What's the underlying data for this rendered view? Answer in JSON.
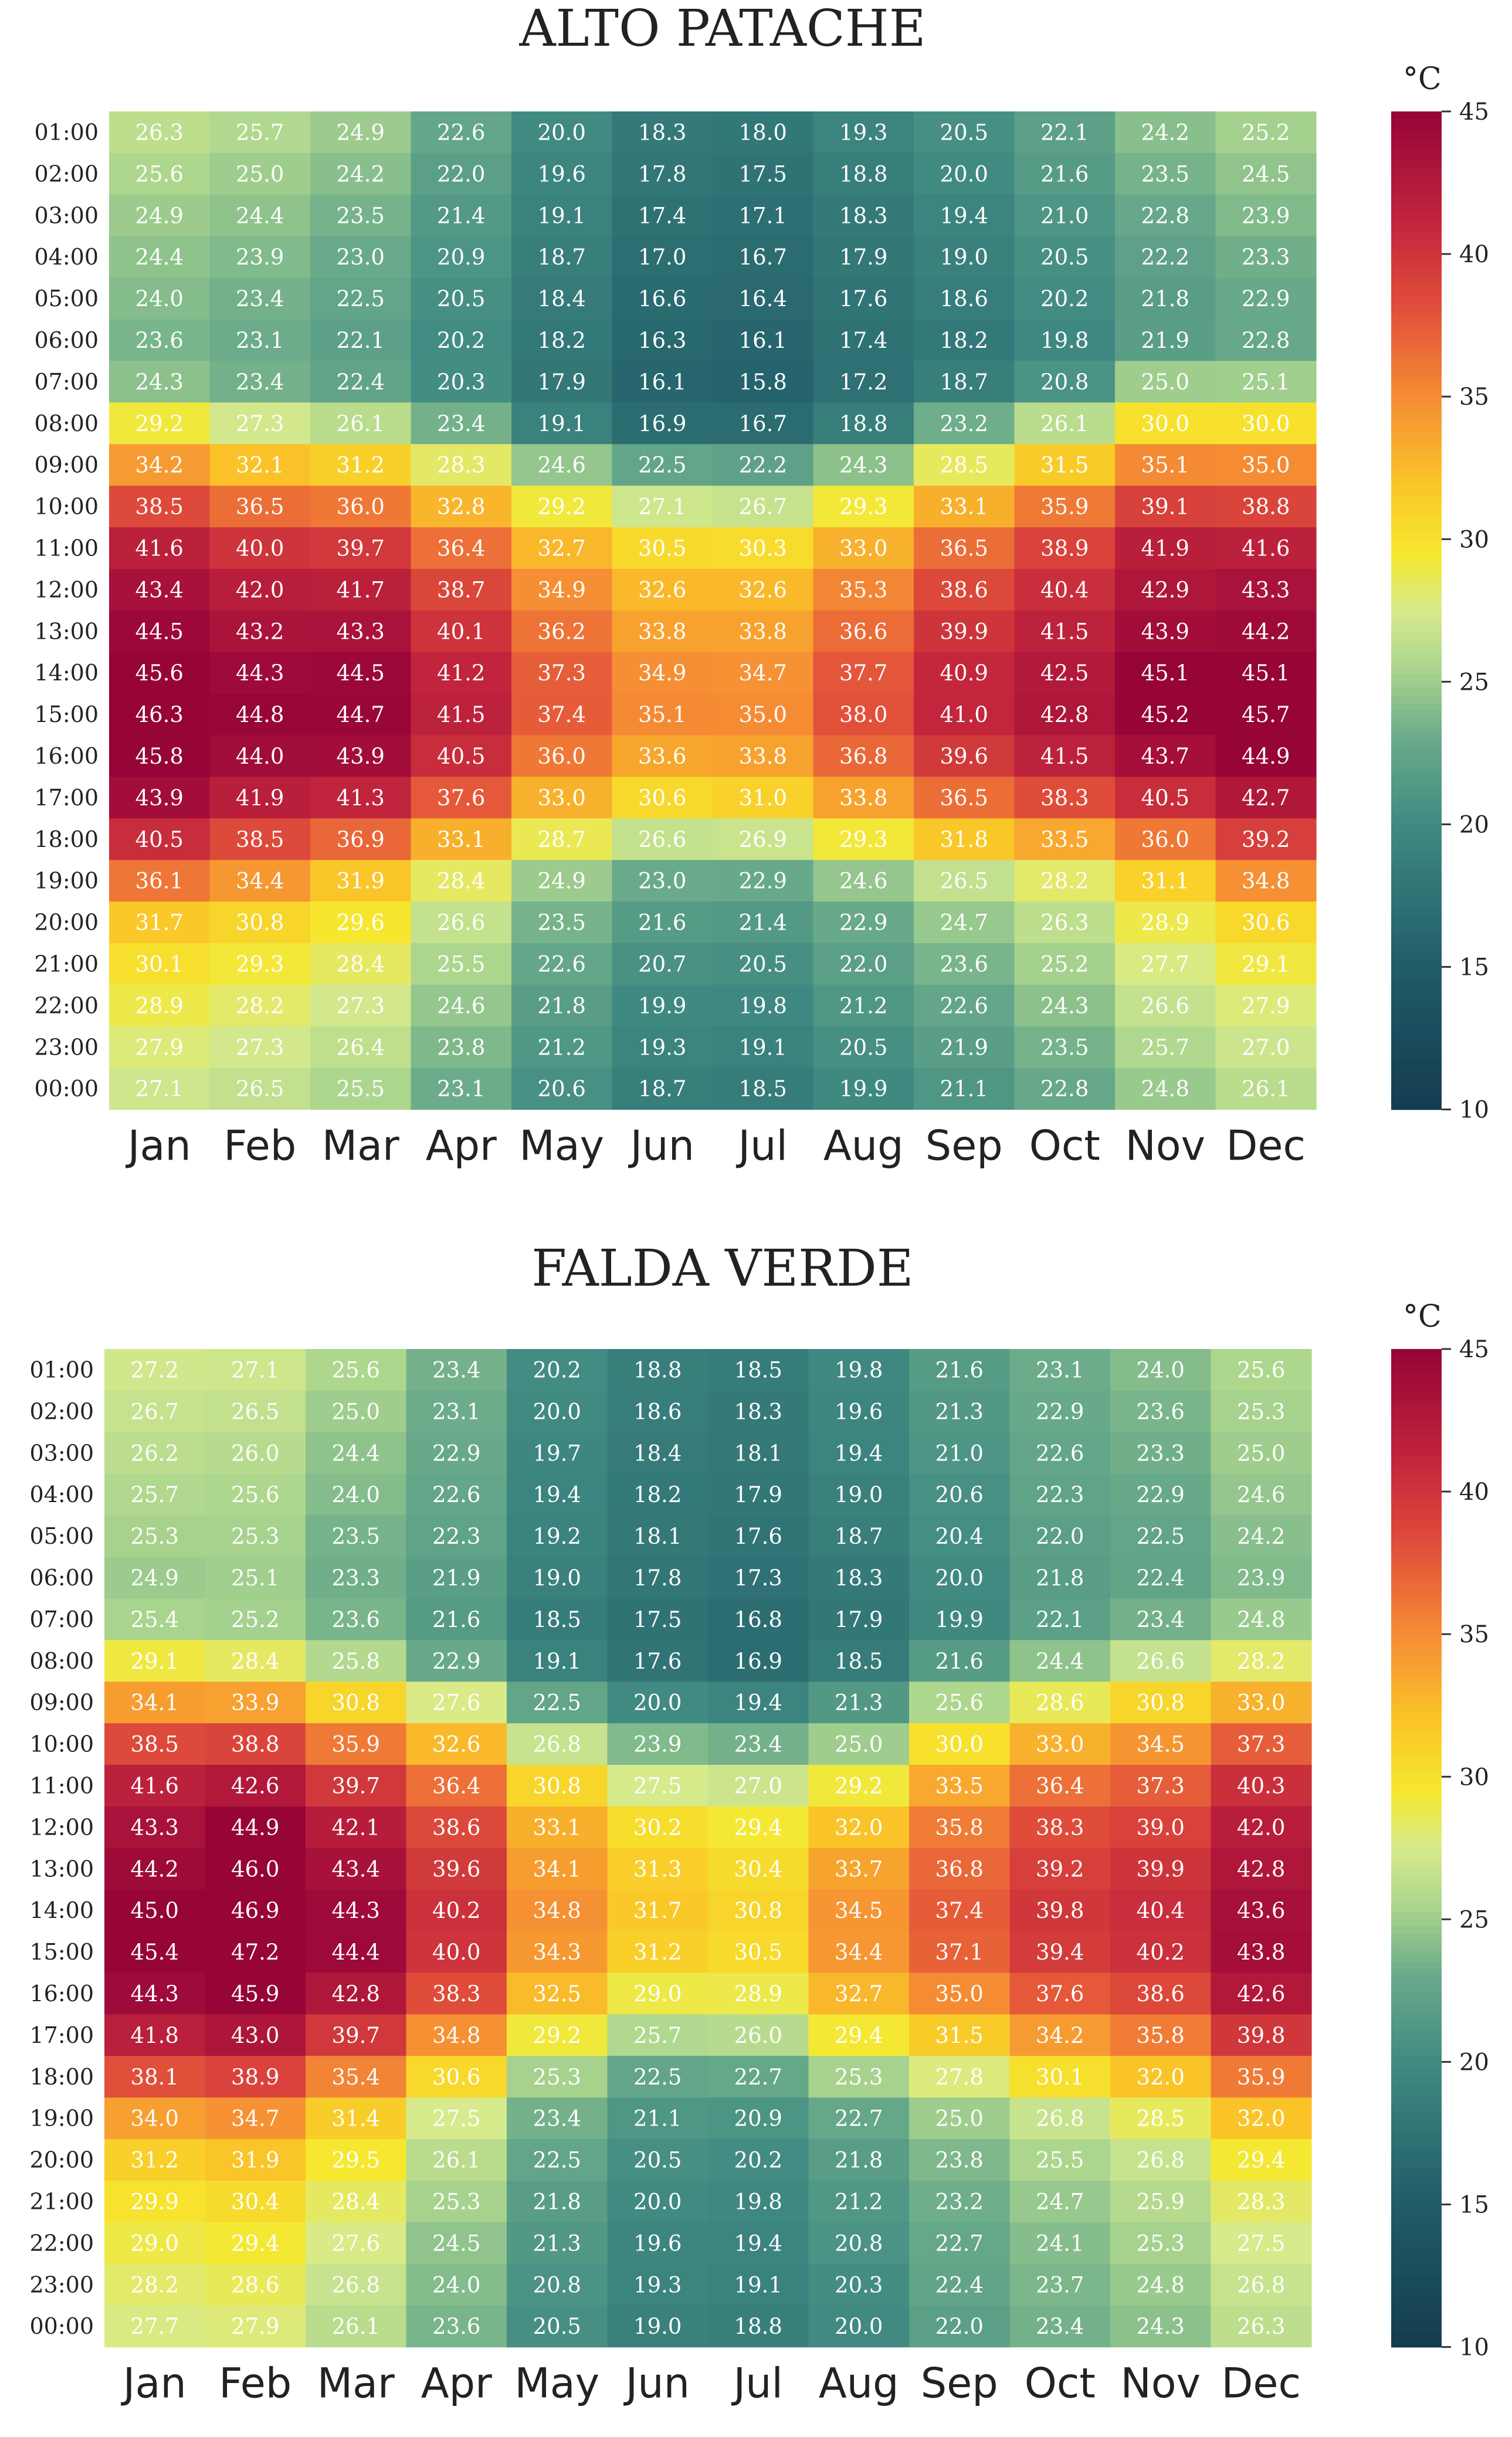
{
  "chart_data": [
    {
      "type": "heatmap",
      "title": "ALTO PATACHE",
      "x": [
        "Jan",
        "Feb",
        "Mar",
        "Apr",
        "May",
        "Jun",
        "Jul",
        "Aug",
        "Sep",
        "Oct",
        "Nov",
        "Dec"
      ],
      "y": [
        "01:00",
        "02:00",
        "03:00",
        "04:00",
        "05:00",
        "06:00",
        "07:00",
        "08:00",
        "09:00",
        "10:00",
        "11:00",
        "12:00",
        "13:00",
        "14:00",
        "15:00",
        "16:00",
        "17:00",
        "18:00",
        "19:00",
        "20:00",
        "21:00",
        "22:00",
        "23:00",
        "00:00"
      ],
      "values": [
        [
          26.3,
          25.7,
          24.9,
          22.6,
          20.0,
          18.3,
          18.0,
          19.3,
          20.5,
          22.1,
          24.2,
          25.2
        ],
        [
          25.6,
          25.0,
          24.2,
          22.0,
          19.6,
          17.8,
          17.5,
          18.8,
          20.0,
          21.6,
          23.5,
          24.5
        ],
        [
          24.9,
          24.4,
          23.5,
          21.4,
          19.1,
          17.4,
          17.1,
          18.3,
          19.4,
          21.0,
          22.8,
          23.9
        ],
        [
          24.4,
          23.9,
          23.0,
          20.9,
          18.7,
          17.0,
          16.7,
          17.9,
          19.0,
          20.5,
          22.2,
          23.3
        ],
        [
          24.0,
          23.4,
          22.5,
          20.5,
          18.4,
          16.6,
          16.4,
          17.6,
          18.6,
          20.2,
          21.8,
          22.9
        ],
        [
          23.6,
          23.1,
          22.1,
          20.2,
          18.2,
          16.3,
          16.1,
          17.4,
          18.2,
          19.8,
          21.9,
          22.8
        ],
        [
          24.3,
          23.4,
          22.4,
          20.3,
          17.9,
          16.1,
          15.8,
          17.2,
          18.7,
          20.8,
          25.0,
          25.1
        ],
        [
          29.2,
          27.3,
          26.1,
          23.4,
          19.1,
          16.9,
          16.7,
          18.8,
          23.2,
          26.1,
          30.0,
          30.0
        ],
        [
          34.2,
          32.1,
          31.2,
          28.3,
          24.6,
          22.5,
          22.2,
          24.3,
          28.5,
          31.5,
          35.1,
          35.0
        ],
        [
          38.5,
          36.5,
          36.0,
          32.8,
          29.2,
          27.1,
          26.7,
          29.3,
          33.1,
          35.9,
          39.1,
          38.8
        ],
        [
          41.6,
          40.0,
          39.7,
          36.4,
          32.7,
          30.5,
          30.3,
          33.0,
          36.5,
          38.9,
          41.9,
          41.6
        ],
        [
          43.4,
          42.0,
          41.7,
          38.7,
          34.9,
          32.6,
          32.6,
          35.3,
          38.6,
          40.4,
          42.9,
          43.3
        ],
        [
          44.5,
          43.2,
          43.3,
          40.1,
          36.2,
          33.8,
          33.8,
          36.6,
          39.9,
          41.5,
          43.9,
          44.2
        ],
        [
          45.6,
          44.3,
          44.5,
          41.2,
          37.3,
          34.9,
          34.7,
          37.7,
          40.9,
          42.5,
          45.1,
          45.1
        ],
        [
          46.3,
          44.8,
          44.7,
          41.5,
          37.4,
          35.1,
          35.0,
          38.0,
          41.0,
          42.8,
          45.2,
          45.7
        ],
        [
          45.8,
          44.0,
          43.9,
          40.5,
          36.0,
          33.6,
          33.8,
          36.8,
          39.6,
          41.5,
          43.7,
          44.9
        ],
        [
          43.9,
          41.9,
          41.3,
          37.6,
          33.0,
          30.6,
          31.0,
          33.8,
          36.5,
          38.3,
          40.5,
          42.7
        ],
        [
          40.5,
          38.5,
          36.9,
          33.1,
          28.7,
          26.6,
          26.9,
          29.3,
          31.8,
          33.5,
          36.0,
          39.2
        ],
        [
          36.1,
          34.4,
          31.9,
          28.4,
          24.9,
          23.0,
          22.9,
          24.6,
          26.5,
          28.2,
          31.1,
          34.8
        ],
        [
          31.7,
          30.8,
          29.6,
          26.6,
          23.5,
          21.6,
          21.4,
          22.9,
          24.7,
          26.3,
          28.9,
          30.6
        ],
        [
          30.1,
          29.3,
          28.4,
          25.5,
          22.6,
          20.7,
          20.5,
          22.0,
          23.6,
          25.2,
          27.7,
          29.1
        ],
        [
          28.9,
          28.2,
          27.3,
          24.6,
          21.8,
          19.9,
          19.8,
          21.2,
          22.6,
          24.3,
          26.6,
          27.9
        ],
        [
          27.9,
          27.3,
          26.4,
          23.8,
          21.2,
          19.3,
          19.1,
          20.5,
          21.9,
          23.5,
          25.7,
          27.0
        ],
        [
          27.1,
          26.5,
          25.5,
          23.1,
          20.6,
          18.7,
          18.5,
          19.9,
          21.1,
          22.8,
          24.8,
          26.1
        ]
      ],
      "colorbar": {
        "label": "°C",
        "range": [
          10,
          45
        ],
        "ticks": [
          10,
          15,
          20,
          25,
          30,
          35,
          40,
          45
        ]
      }
    },
    {
      "type": "heatmap",
      "title": "FALDA VERDE",
      "x": [
        "Jan",
        "Feb",
        "Mar",
        "Apr",
        "May",
        "Jun",
        "Jul",
        "Aug",
        "Sep",
        "Oct",
        "Nov",
        "Dec"
      ],
      "y": [
        "01:00",
        "02:00",
        "03:00",
        "04:00",
        "05:00",
        "06:00",
        "07:00",
        "08:00",
        "09:00",
        "10:00",
        "11:00",
        "12:00",
        "13:00",
        "14:00",
        "15:00",
        "16:00",
        "17:00",
        "18:00",
        "19:00",
        "20:00",
        "21:00",
        "22:00",
        "23:00",
        "00:00"
      ],
      "values": [
        [
          27.2,
          27.1,
          25.6,
          23.4,
          20.2,
          18.8,
          18.5,
          19.8,
          21.6,
          23.1,
          24.0,
          25.6
        ],
        [
          26.7,
          26.5,
          25.0,
          23.1,
          20.0,
          18.6,
          18.3,
          19.6,
          21.3,
          22.9,
          23.6,
          25.3
        ],
        [
          26.2,
          26.0,
          24.4,
          22.9,
          19.7,
          18.4,
          18.1,
          19.4,
          21.0,
          22.6,
          23.3,
          25.0
        ],
        [
          25.7,
          25.6,
          24.0,
          22.6,
          19.4,
          18.2,
          17.9,
          19.0,
          20.6,
          22.3,
          22.9,
          24.6
        ],
        [
          25.3,
          25.3,
          23.5,
          22.3,
          19.2,
          18.1,
          17.6,
          18.7,
          20.4,
          22.0,
          22.5,
          24.2
        ],
        [
          24.9,
          25.1,
          23.3,
          21.9,
          19.0,
          17.8,
          17.3,
          18.3,
          20.0,
          21.8,
          22.4,
          23.9
        ],
        [
          25.4,
          25.2,
          23.6,
          21.6,
          18.5,
          17.5,
          16.8,
          17.9,
          19.9,
          22.1,
          23.4,
          24.8
        ],
        [
          29.1,
          28.4,
          25.8,
          22.9,
          19.1,
          17.6,
          16.9,
          18.5,
          21.6,
          24.4,
          26.6,
          28.2
        ],
        [
          34.1,
          33.9,
          30.8,
          27.6,
          22.5,
          20.0,
          19.4,
          21.3,
          25.6,
          28.6,
          30.8,
          33.0
        ],
        [
          38.5,
          38.8,
          35.9,
          32.6,
          26.8,
          23.9,
          23.4,
          25.0,
          30.0,
          33.0,
          34.5,
          37.3
        ],
        [
          41.6,
          42.6,
          39.7,
          36.4,
          30.8,
          27.5,
          27.0,
          29.2,
          33.5,
          36.4,
          37.3,
          40.3
        ],
        [
          43.3,
          44.9,
          42.1,
          38.6,
          33.1,
          30.2,
          29.4,
          32.0,
          35.8,
          38.3,
          39.0,
          42.0
        ],
        [
          44.2,
          46.0,
          43.4,
          39.6,
          34.1,
          31.3,
          30.4,
          33.7,
          36.8,
          39.2,
          39.9,
          42.8
        ],
        [
          45.0,
          46.9,
          44.3,
          40.2,
          34.8,
          31.7,
          30.8,
          34.5,
          37.4,
          39.8,
          40.4,
          43.6
        ],
        [
          45.4,
          47.2,
          44.4,
          40.0,
          34.3,
          31.2,
          30.5,
          34.4,
          37.1,
          39.4,
          40.2,
          43.8
        ],
        [
          44.3,
          45.9,
          42.8,
          38.3,
          32.5,
          29.0,
          28.9,
          32.7,
          35.0,
          37.6,
          38.6,
          42.6
        ],
        [
          41.8,
          43.0,
          39.7,
          34.8,
          29.2,
          25.7,
          26.0,
          29.4,
          31.5,
          34.2,
          35.8,
          39.8
        ],
        [
          38.1,
          38.9,
          35.4,
          30.6,
          25.3,
          22.5,
          22.7,
          25.3,
          27.8,
          30.1,
          32.0,
          35.9
        ],
        [
          34.0,
          34.7,
          31.4,
          27.5,
          23.4,
          21.1,
          20.9,
          22.7,
          25.0,
          26.8,
          28.5,
          32.0
        ],
        [
          31.2,
          31.9,
          29.5,
          26.1,
          22.5,
          20.5,
          20.2,
          21.8,
          23.8,
          25.5,
          26.8,
          29.4
        ],
        [
          29.9,
          30.4,
          28.4,
          25.3,
          21.8,
          20.0,
          19.8,
          21.2,
          23.2,
          24.7,
          25.9,
          28.3
        ],
        [
          29.0,
          29.4,
          27.6,
          24.5,
          21.3,
          19.6,
          19.4,
          20.8,
          22.7,
          24.1,
          25.3,
          27.5
        ],
        [
          28.2,
          28.6,
          26.8,
          24.0,
          20.8,
          19.3,
          19.1,
          20.3,
          22.4,
          23.7,
          24.8,
          26.8
        ],
        [
          27.7,
          27.9,
          26.1,
          23.6,
          20.5,
          19.0,
          18.8,
          20.0,
          22.0,
          23.4,
          24.3,
          26.3
        ]
      ],
      "colorbar": {
        "label": "°C",
        "range": [
          10,
          45
        ],
        "ticks": [
          10,
          15,
          20,
          25,
          30,
          35,
          40,
          45
        ]
      }
    }
  ]
}
